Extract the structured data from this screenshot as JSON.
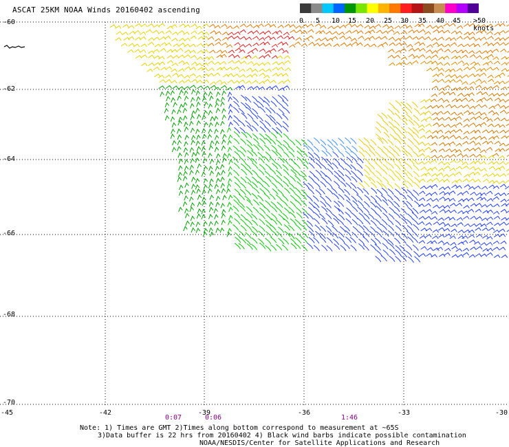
{
  "title": "ASCAT 25KM NOAA Winds 20160402 ascending",
  "colorbar": {
    "labels": [
      "0",
      "5",
      "10",
      "15",
      "20",
      "25",
      "30",
      "35",
      "40",
      "45",
      ">50 knots"
    ],
    "colors": [
      "#3a3a3a",
      "#8a8a8a",
      "#00c8ff",
      "#0064ff",
      "#009600",
      "#78e600",
      "#ffff00",
      "#ffb400",
      "#ff7800",
      "#ff1e1e",
      "#b41414",
      "#8c4b1e",
      "#c88c50",
      "#ff00c8",
      "#b400ff",
      "#500096"
    ]
  },
  "lat_labels": [
    "-60",
    "-62",
    "-64",
    "-66",
    "-68",
    "-70"
  ],
  "lon_labels": [
    "-45",
    "-42",
    "-39",
    "-36",
    "-33",
    "-30"
  ],
  "time_labels": [
    "0:07",
    "0:06",
    "1:46"
  ],
  "notes": [
    "Note: 1) Times are GMT 2)Times along bottom correspond to measurement at ~65S",
    "3)Data buffer is 22 hrs from 20160402 4) Black wind barbs indicate possible contamination",
    "NOAA/NESDIS/Center for Satellite Applications and Research"
  ]
}
